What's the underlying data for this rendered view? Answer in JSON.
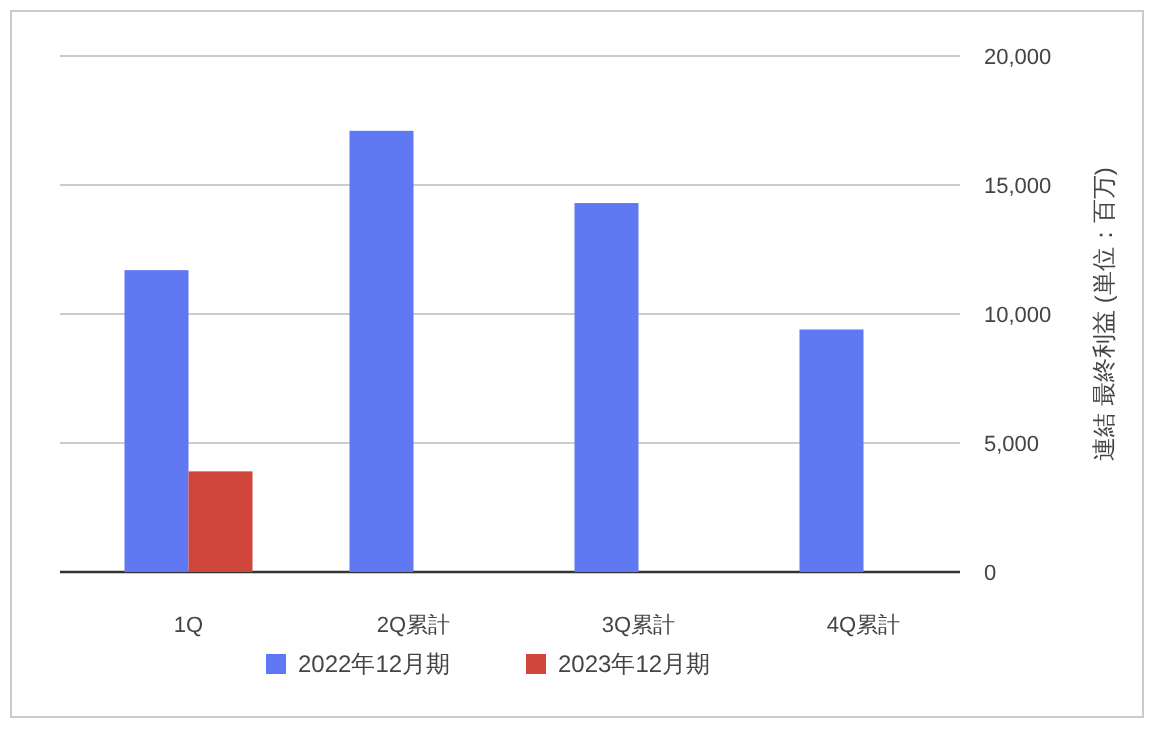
{
  "chart_data": {
    "type": "bar",
    "categories": [
      "1Q",
      "2Q累計",
      "3Q累計",
      "4Q累計"
    ],
    "series": [
      {
        "name": "2022年12月期",
        "color": "#6078f2",
        "values": [
          11700,
          17100,
          14300,
          9400
        ]
      },
      {
        "name": "2023年12月期",
        "color": "#d0463c",
        "values": [
          3900,
          null,
          null,
          null
        ]
      }
    ],
    "ylabel": "連結 最終利益 (単位：百万)",
    "ylim": [
      0,
      20000
    ],
    "yticks": [
      0,
      {
        "value": 5000,
        "label": "5,000"
      },
      {
        "value": 10000,
        "label": "10,000"
      },
      {
        "value": 15000,
        "label": "15,000"
      },
      {
        "value": 20000,
        "label": "20,000"
      }
    ],
    "grid": "y",
    "legend": "bottom"
  }
}
